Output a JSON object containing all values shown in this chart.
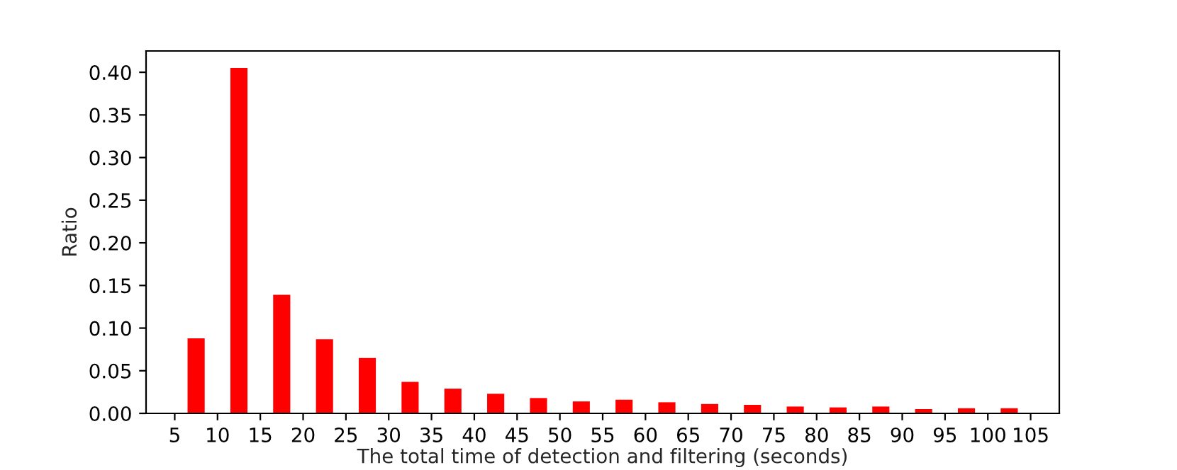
{
  "chart_data": {
    "type": "bar",
    "xlabel": "The total time of detection and filtering (seconds)",
    "ylabel": "Ratio",
    "x": [
      7.5,
      12.5,
      17.5,
      22.5,
      27.5,
      32.5,
      37.5,
      42.5,
      47.5,
      52.5,
      57.5,
      62.5,
      67.5,
      72.5,
      77.5,
      82.5,
      87.5,
      92.5,
      97.5,
      102.5
    ],
    "values": [
      0.088,
      0.405,
      0.139,
      0.087,
      0.065,
      0.037,
      0.029,
      0.023,
      0.018,
      0.014,
      0.016,
      0.013,
      0.011,
      0.01,
      0.008,
      0.007,
      0.008,
      0.005,
      0.006,
      0.006
    ],
    "color": "#ff0000",
    "xlim": [
      1.65,
      108.35
    ],
    "xticks": [
      5,
      10,
      15,
      20,
      25,
      30,
      35,
      40,
      45,
      50,
      55,
      60,
      65,
      70,
      75,
      80,
      85,
      90,
      95,
      100,
      105
    ],
    "ylim": [
      0,
      0.425
    ],
    "yticks": [
      {
        "value": 0,
        "label": "0.00"
      },
      {
        "value": 0.05,
        "label": "0.05"
      },
      {
        "value": 0.1,
        "label": "0.10"
      },
      {
        "value": 0.15,
        "label": "0.15"
      },
      {
        "value": 0.2,
        "label": "0.20"
      },
      {
        "value": 0.25,
        "label": "0.25"
      },
      {
        "value": 0.3,
        "label": "0.30"
      },
      {
        "value": 0.35,
        "label": "0.35"
      },
      {
        "value": 0.4,
        "label": "0.40"
      }
    ],
    "grid": false,
    "legend": false
  }
}
